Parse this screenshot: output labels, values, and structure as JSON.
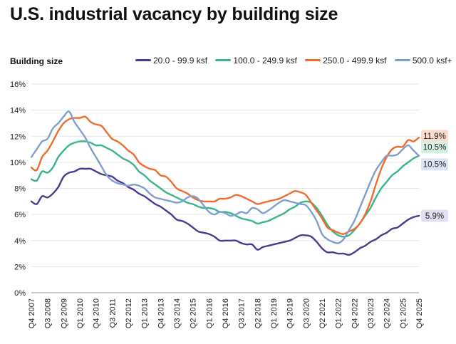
{
  "title": "U.S. industrial vacancy by building size",
  "legend_title": "Building size",
  "chart_data": {
    "type": "line",
    "title": "U.S. industrial vacancy by building size",
    "xlabel": "",
    "ylabel": "",
    "ylim": [
      0,
      16
    ],
    "y_ticks": [
      "0%",
      "2%",
      "4%",
      "6%",
      "8%",
      "10%",
      "12%",
      "14%",
      "16%"
    ],
    "y_tick_values": [
      0,
      2,
      4,
      6,
      8,
      10,
      12,
      14,
      16
    ],
    "x_range": [
      0,
      73
    ],
    "x_tick_labels": [
      "Q4 2007",
      "Q3 2008",
      "Q2 2009",
      "Q1 2010",
      "Q4 2010",
      "Q3 2011",
      "Q2 2012",
      "Q1 2013",
      "Q4 2013",
      "Q3 2014",
      "Q2 2015",
      "Q1 2016",
      "Q4 2016",
      "Q3 2017",
      "Q2 2018",
      "Q1 2019",
      "Q4 2019",
      "Q3 2020",
      "Q2 2021",
      "Q1 2022",
      "Q4 2022",
      "Q3 2023",
      "Q2 2024",
      "Q1 2025",
      "Q4 2025"
    ],
    "x_tick_positions": [
      0,
      3,
      6,
      9,
      12,
      15,
      18,
      21,
      24,
      27,
      30,
      33,
      36,
      39,
      42,
      45,
      48,
      51,
      54,
      57,
      60,
      63,
      66,
      69,
      72
    ],
    "grid": true,
    "legend_position": "top",
    "series": [
      {
        "name": "20.0 - 99.9 ksf",
        "color": "#4b3a8f",
        "end_label": "5.9%",
        "end_label_bg": "#e2dff0",
        "x": [
          0,
          1,
          2,
          3,
          4,
          5,
          6,
          7,
          8,
          9,
          10,
          11,
          12,
          13,
          14,
          15,
          16,
          17,
          18,
          19,
          20,
          21,
          22,
          23,
          24,
          25,
          26,
          27,
          28,
          29,
          30,
          31,
          32,
          33,
          34,
          35,
          36,
          37,
          38,
          39,
          40,
          41,
          42,
          43,
          44,
          45,
          46,
          47,
          48,
          49,
          50,
          51,
          52,
          53,
          54,
          55,
          56,
          57,
          58,
          59,
          60,
          61,
          62,
          63,
          64,
          65,
          66,
          67,
          68,
          69,
          70,
          71,
          72
        ],
        "values": [
          7.0,
          6.8,
          7.4,
          7.3,
          7.6,
          8.1,
          8.9,
          9.2,
          9.3,
          9.5,
          9.5,
          9.5,
          9.3,
          9.1,
          9.0,
          8.9,
          8.6,
          8.4,
          8.1,
          7.9,
          7.6,
          7.4,
          7.1,
          6.8,
          6.6,
          6.3,
          6.0,
          5.6,
          5.5,
          5.3,
          5.0,
          4.7,
          4.6,
          4.5,
          4.3,
          4.0,
          4.0,
          4.0,
          4.0,
          3.8,
          3.7,
          3.7,
          3.3,
          3.5,
          3.6,
          3.7,
          3.8,
          3.9,
          4.0,
          4.2,
          4.4,
          4.4,
          4.3,
          3.9,
          3.4,
          3.1,
          3.1,
          3.0,
          3.0,
          2.9,
          3.1,
          3.4,
          3.6,
          3.9,
          4.1,
          4.4,
          4.6,
          4.9,
          5.0,
          5.3,
          5.6,
          5.8,
          5.9
        ]
      },
      {
        "name": "100.0 - 249.9 ksf",
        "color": "#3cb489",
        "end_label": "10.5%",
        "end_label_bg": "#d6f0e4",
        "x": [
          0,
          1,
          2,
          3,
          4,
          5,
          6,
          7,
          8,
          9,
          10,
          11,
          12,
          13,
          14,
          15,
          16,
          17,
          18,
          19,
          20,
          21,
          22,
          23,
          24,
          25,
          26,
          27,
          28,
          29,
          30,
          31,
          32,
          33,
          34,
          35,
          36,
          37,
          38,
          39,
          40,
          41,
          42,
          43,
          44,
          45,
          46,
          47,
          48,
          49,
          50,
          51,
          52,
          53,
          54,
          55,
          56,
          57,
          58,
          59,
          60,
          61,
          62,
          63,
          64,
          65,
          66,
          67,
          68,
          69,
          70,
          71,
          72
        ],
        "values": [
          8.7,
          8.6,
          9.3,
          9.2,
          9.6,
          10.4,
          10.9,
          11.3,
          11.5,
          11.6,
          11.6,
          11.5,
          11.3,
          11.3,
          11.1,
          10.9,
          10.6,
          10.3,
          10.1,
          9.8,
          9.3,
          9.0,
          8.6,
          8.3,
          8.0,
          7.7,
          7.5,
          7.3,
          7.1,
          6.9,
          6.8,
          6.6,
          6.5,
          6.5,
          6.4,
          6.2,
          6.2,
          6.1,
          5.9,
          5.7,
          5.6,
          5.5,
          5.3,
          5.4,
          5.5,
          5.7,
          5.9,
          6.1,
          6.4,
          6.6,
          6.9,
          7.0,
          6.9,
          6.5,
          5.9,
          5.2,
          4.7,
          4.4,
          4.3,
          4.4,
          4.8,
          5.3,
          5.9,
          6.5,
          7.3,
          8.0,
          8.5,
          9.0,
          9.3,
          9.7,
          10.0,
          10.3,
          10.5
        ]
      },
      {
        "name": "250.0 - 499.9 ksf",
        "color": "#ef6c2e",
        "end_label": "11.9%",
        "end_label_bg": "#fbdccb",
        "x": [
          0,
          1,
          2,
          3,
          4,
          5,
          6,
          7,
          8,
          9,
          10,
          11,
          12,
          13,
          14,
          15,
          16,
          17,
          18,
          19,
          20,
          21,
          22,
          23,
          24,
          25,
          26,
          27,
          28,
          29,
          30,
          31,
          32,
          33,
          34,
          35,
          36,
          37,
          38,
          39,
          40,
          41,
          42,
          43,
          44,
          45,
          46,
          47,
          48,
          49,
          50,
          51,
          52,
          53,
          54,
          55,
          56,
          57,
          58,
          59,
          60,
          61,
          62,
          63,
          64,
          65,
          66,
          67,
          68,
          69,
          70,
          71,
          72
        ],
        "values": [
          9.6,
          9.4,
          10.4,
          10.9,
          11.6,
          12.4,
          13.0,
          13.3,
          13.4,
          13.4,
          13.5,
          13.1,
          12.9,
          12.8,
          12.3,
          11.8,
          11.6,
          11.3,
          10.9,
          10.6,
          10.0,
          9.7,
          9.5,
          9.4,
          9.0,
          8.9,
          8.5,
          8.0,
          7.8,
          7.6,
          7.3,
          7.1,
          7.0,
          7.0,
          7.0,
          7.2,
          7.2,
          7.3,
          7.5,
          7.4,
          7.2,
          7.0,
          6.8,
          6.9,
          7.0,
          7.1,
          7.2,
          7.4,
          7.6,
          7.8,
          7.7,
          7.5,
          6.9,
          6.3,
          5.7,
          5.0,
          4.8,
          4.6,
          4.5,
          4.7,
          4.9,
          5.3,
          6.0,
          7.0,
          8.3,
          9.5,
          10.4,
          11.0,
          11.2,
          11.2,
          11.7,
          11.6,
          11.9
        ]
      },
      {
        "name": "500.0 ksf+",
        "color": "#7f9fcf",
        "end_label": "10.5%",
        "end_label_bg": "#dce5f4",
        "x": [
          0,
          1,
          2,
          3,
          4,
          5,
          6,
          7,
          8,
          9,
          10,
          11,
          12,
          13,
          14,
          15,
          16,
          17,
          18,
          19,
          20,
          21,
          22,
          23,
          24,
          25,
          26,
          27,
          28,
          29,
          30,
          31,
          32,
          33,
          34,
          35,
          36,
          37,
          38,
          39,
          40,
          41,
          42,
          43,
          44,
          45,
          46,
          47,
          48,
          49,
          50,
          51,
          52,
          53,
          54,
          55,
          56,
          57,
          58,
          59,
          60,
          61,
          62,
          63,
          64,
          65,
          66,
          67,
          68,
          69,
          70,
          71,
          72
        ],
        "values": [
          10.4,
          11.0,
          11.6,
          11.8,
          12.6,
          13.0,
          13.5,
          13.9,
          13.1,
          12.5,
          11.9,
          11.1,
          10.4,
          9.7,
          9.0,
          8.6,
          8.4,
          8.3,
          8.2,
          8.3,
          8.2,
          8.0,
          7.6,
          7.3,
          7.2,
          7.1,
          7.0,
          6.9,
          7.0,
          7.3,
          7.4,
          7.2,
          6.7,
          6.2,
          6.0,
          6.2,
          6.1,
          5.9,
          6.0,
          6.2,
          6.1,
          6.5,
          6.4,
          6.1,
          6.3,
          6.6,
          6.9,
          7.1,
          7.0,
          6.9,
          6.8,
          6.7,
          6.2,
          5.5,
          4.5,
          4.1,
          3.9,
          3.8,
          4.1,
          4.8,
          5.5,
          6.5,
          7.5,
          8.5,
          9.4,
          10.0,
          10.5,
          10.5,
          10.6,
          11.0,
          11.3,
          10.9,
          10.5
        ]
      }
    ]
  }
}
